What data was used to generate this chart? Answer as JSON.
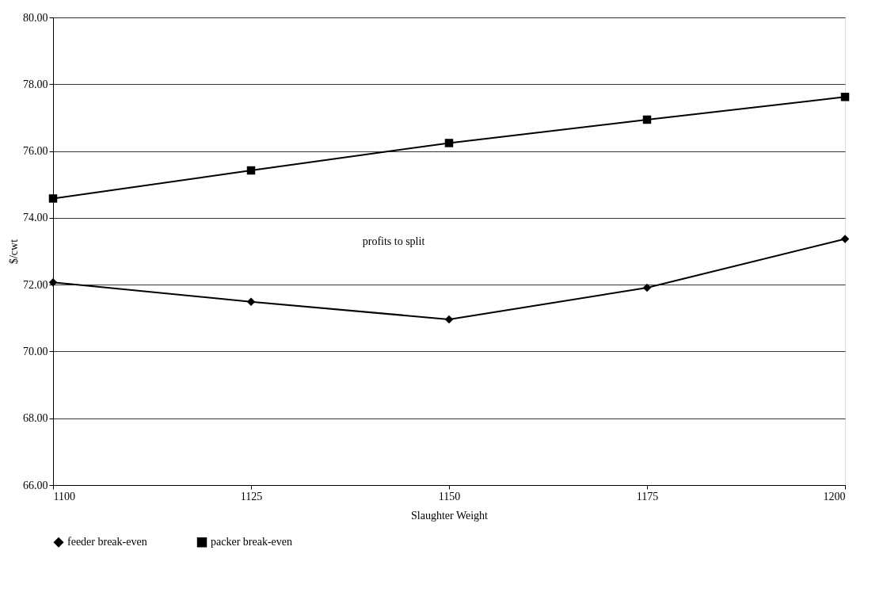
{
  "chart_data": {
    "type": "line",
    "xlabel": "Slaughter Weight",
    "ylabel": "$/cwt",
    "x": [
      1100,
      1125,
      1150,
      1175,
      1200
    ],
    "series": [
      {
        "name": "feeder break-even",
        "color": "#000000",
        "marker": "diamond",
        "values": [
          72.07,
          71.49,
          70.96,
          71.91,
          73.37
        ]
      },
      {
        "name": "packer break-even",
        "color": "#000000",
        "marker": "square",
        "values": [
          74.58,
          75.42,
          76.24,
          76.94,
          77.62
        ]
      }
    ],
    "xlim": [
      1100,
      1200
    ],
    "xticks": [
      1100,
      1125,
      1150,
      1175,
      1200
    ],
    "ylim": [
      66,
      80
    ],
    "yticks": [
      {
        "value": 66,
        "label": "66.00"
      },
      {
        "value": 68,
        "label": "68.00"
      },
      {
        "value": 70,
        "label": "70.00"
      },
      {
        "value": 72,
        "label": "72.00"
      },
      {
        "value": 74,
        "label": "74.00"
      },
      {
        "value": 76,
        "label": "76.00"
      },
      {
        "value": 78,
        "label": "78.00"
      },
      {
        "value": 80,
        "label": "80.00"
      }
    ],
    "grid": "y",
    "legend": "bottom",
    "line_style": "solid",
    "annotations": [
      "profits to split"
    ]
  }
}
